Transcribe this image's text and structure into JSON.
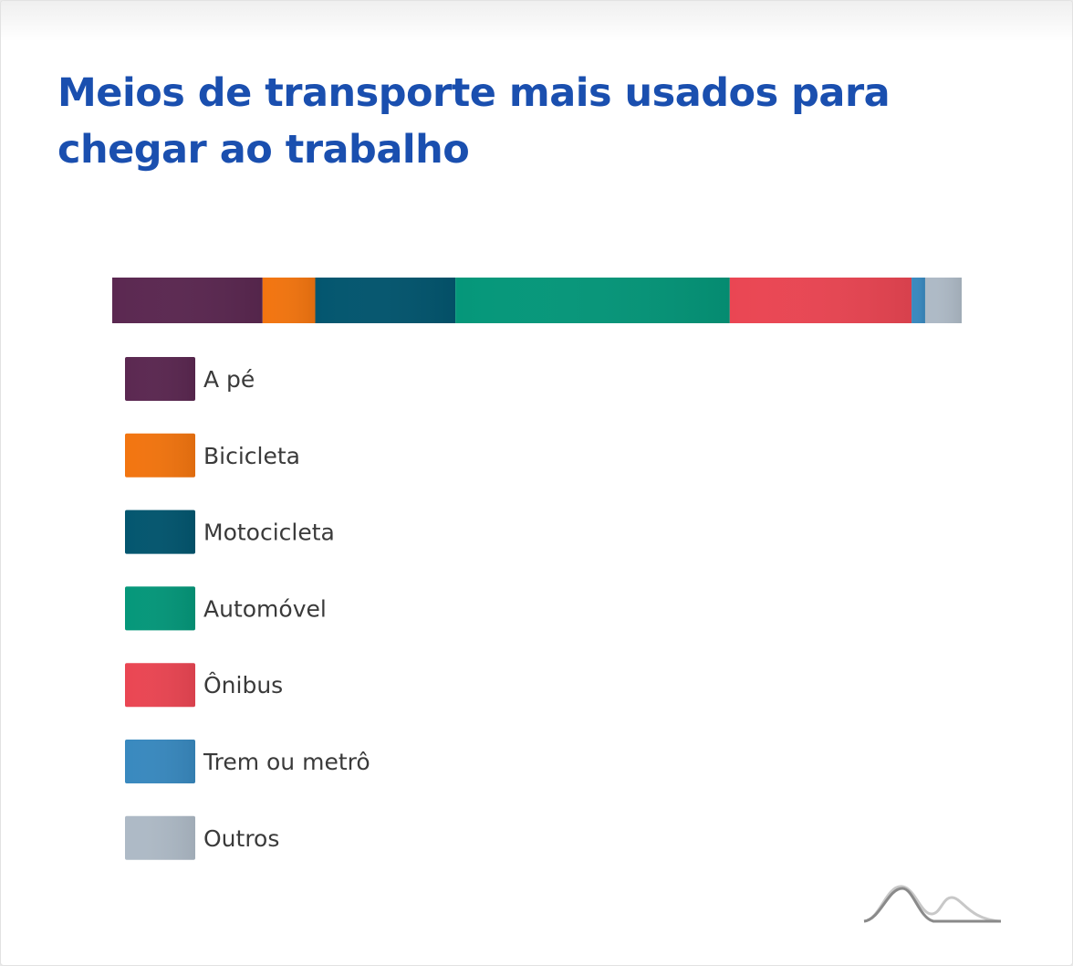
{
  "title": "Meios de transporte mais usados para chegar ao trabalho",
  "chart_data": {
    "type": "bar",
    "orientation": "horizontal-stacked",
    "title": "Meios de transporte mais usados para chegar ao trabalho",
    "legend_position": "below",
    "grid": false,
    "series": [
      {
        "name": "A pé",
        "value": 17.7,
        "color": "#5b2851"
      },
      {
        "name": "Bicicleta",
        "value": 6.2,
        "color": "#f27510"
      },
      {
        "name": "Motocicleta",
        "value": 16.5,
        "color": "#03566f"
      },
      {
        "name": "Automóvel",
        "value": 32.3,
        "color": "#05977a"
      },
      {
        "name": "Ônibus",
        "value": 21.4,
        "color": "#ea4653"
      },
      {
        "name": "Trem ou metrô",
        "value": 1.6,
        "color": "#3989bf"
      },
      {
        "name": "Outros",
        "value": 4.3,
        "color": "#aebac6"
      }
    ]
  },
  "logo_icon": "mountain-curve-logo-icon"
}
